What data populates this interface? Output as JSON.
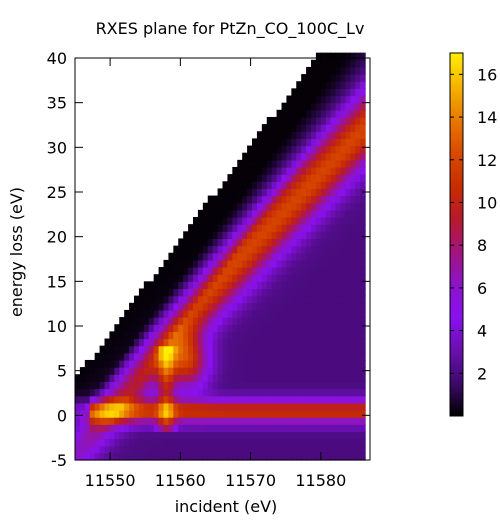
{
  "chart_data": {
    "type": "heatmap",
    "title": "RXES plane for PtZn_CO_100C_Lv",
    "xlabel": "incident (eV)",
    "ylabel": "energy loss (eV)",
    "xlim": [
      11545,
      11587
    ],
    "ylim": [
      -5,
      40
    ],
    "x_ticks": [
      11550,
      11560,
      11570,
      11580
    ],
    "y_ticks": [
      -5,
      0,
      5,
      10,
      15,
      20,
      25,
      30,
      35,
      40
    ],
    "colorbar": {
      "range": [
        0,
        17
      ],
      "ticks": [
        2,
        4,
        6,
        8,
        10,
        12,
        14,
        16
      ],
      "palette": [
        "#000000",
        "#3d0a6b",
        "#6b0fb0",
        "#8a10f0",
        "#8b14c8",
        "#a3147a",
        "#b81a2a",
        "#c82e00",
        "#d94b00",
        "#e87a00",
        "#f5b400",
        "#ffee00"
      ]
    },
    "data_region": {
      "description_free": true,
      "x_range": [
        11545,
        11586
      ],
      "diagonal_lower_bound_slope": 1,
      "features": [
        {
          "kind": "hotspot",
          "x": 11561,
          "y": 6,
          "value": 16.5
        },
        {
          "kind": "diagonal_ridge",
          "x_start": 11547,
          "y_start": 0,
          "x_end": 11586,
          "y_end": 32,
          "value": 10
        },
        {
          "kind": "elastic_line",
          "y": 0.5,
          "x_start": 11547,
          "x_end": 11586,
          "value": 9
        },
        {
          "kind": "vertical_band",
          "x": 11558,
          "y_start": -2,
          "y_end": 8,
          "value": 11
        }
      ]
    }
  }
}
